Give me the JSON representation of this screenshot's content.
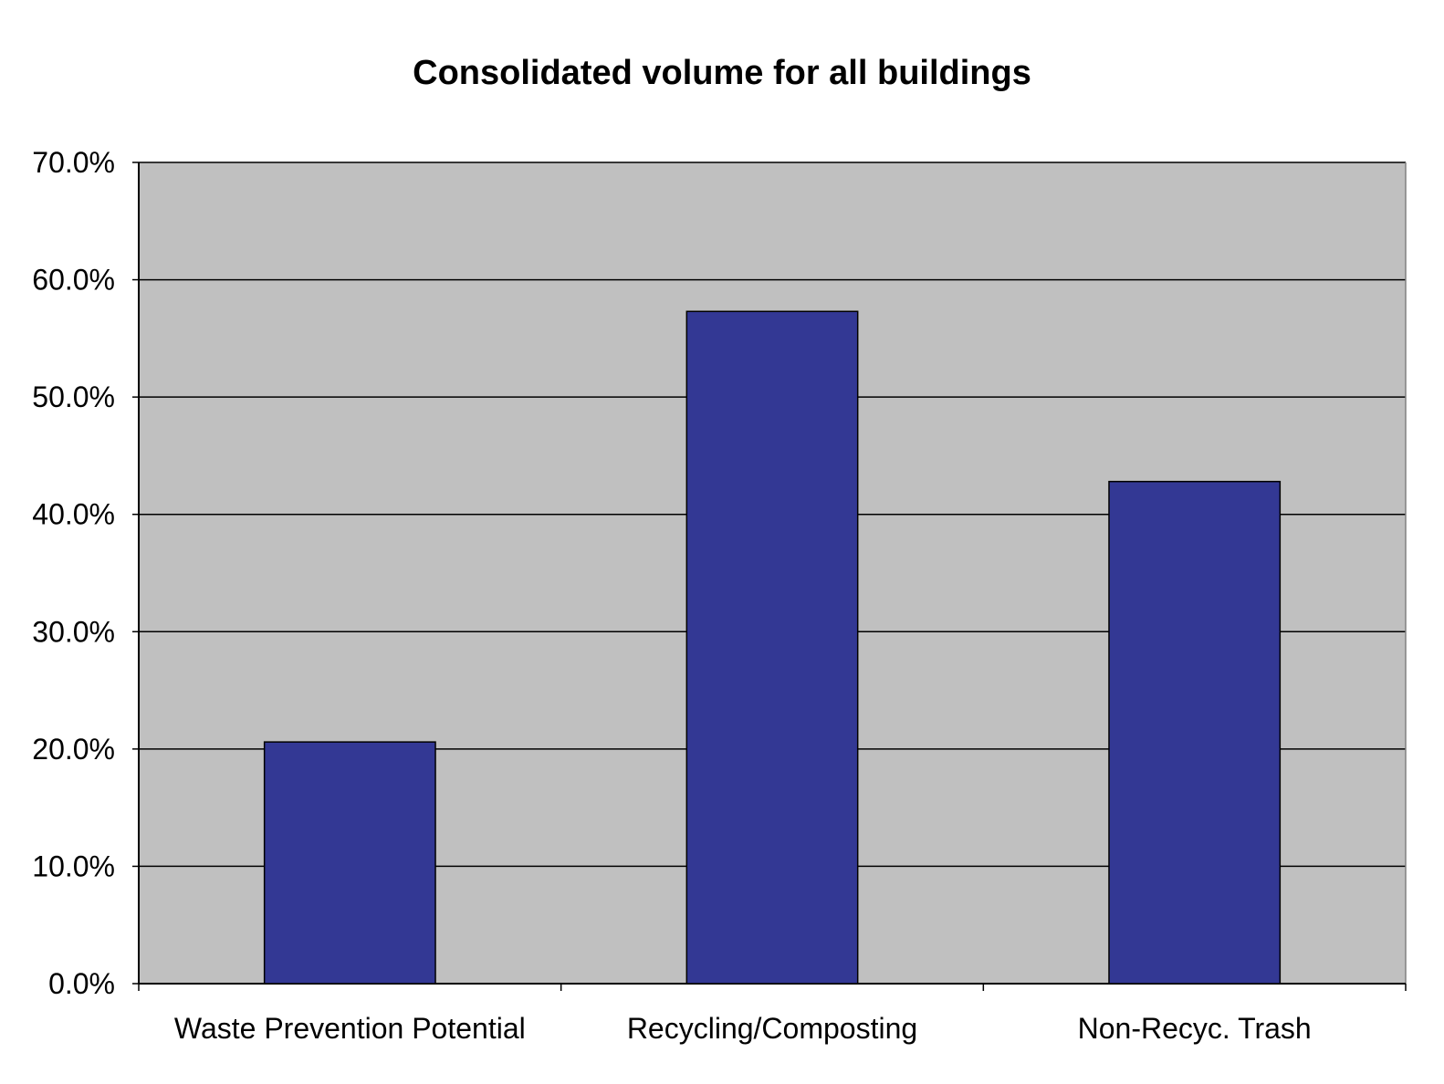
{
  "chart_data": {
    "type": "bar",
    "title": "Consolidated volume for all buildings",
    "xlabel": "",
    "ylabel": "",
    "categories": [
      "Waste Prevention Potential",
      "Recycling/Composting",
      "Non-Recyc. Trash"
    ],
    "values": [
      20.6,
      57.3,
      42.8
    ],
    "ylim": [
      0,
      70
    ],
    "y_ticks": [
      0,
      10,
      20,
      30,
      40,
      50,
      60,
      70
    ],
    "y_tick_labels": [
      "0.0%",
      "10.0%",
      "20.0%",
      "30.0%",
      "40.0%",
      "50.0%",
      "60.0%",
      "70.0%"
    ],
    "grid": true,
    "legend": "none",
    "colors": {
      "bar": "#333894",
      "plot_background": "#c0c0c0",
      "grid": "#000000"
    }
  }
}
